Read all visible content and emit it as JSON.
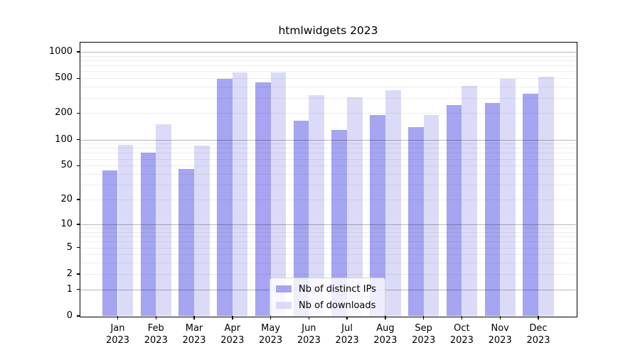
{
  "chart_data": {
    "type": "bar",
    "title": "htmlwidgets 2023",
    "y_scale": "log10(value+1)",
    "ylim": [
      0,
      1270
    ],
    "yticks": [
      0,
      1,
      2,
      5,
      10,
      20,
      50,
      100,
      200,
      500,
      1000
    ],
    "grid": "horizontal; light minor lines at 2-9 per decade, darker major lines at 1, 10, 100, 1000",
    "legend_position": "lower center",
    "categories": [
      "Jan",
      "Feb",
      "Mar",
      "Apr",
      "May",
      "Jun",
      "Jul",
      "Aug",
      "Sep",
      "Oct",
      "Nov",
      "Dec"
    ],
    "x_year_line": "2023",
    "series": [
      {
        "name": "Nb of distinct IPs",
        "color": "#a5a5f2",
        "values": [
          44,
          71,
          46,
          497,
          451,
          165,
          129,
          190,
          140,
          246,
          264,
          331
        ]
      },
      {
        "name": "Nb of downloads",
        "color": "#dbdbf8",
        "values": [
          87,
          149,
          86,
          585,
          580,
          322,
          305,
          365,
          190,
          410,
          495,
          524
        ]
      }
    ]
  },
  "colors": {
    "background": "#ffffff",
    "axis": "#000000",
    "major_grid": "#b8b8b8",
    "minor_grid": "#ededed",
    "legend_border": "#d2d2d2"
  }
}
